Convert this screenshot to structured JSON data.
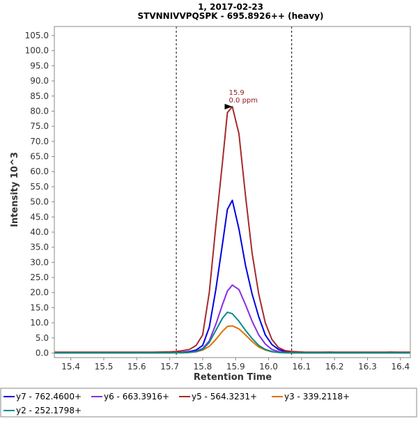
{
  "chart_data": {
    "type": "line",
    "title": "1, 2017-02-23",
    "subtitle": "STVNNIVVPQSPK - 695.8926++ (heavy)",
    "xlabel": "Retention Time",
    "ylabel": "Intensity 10^3",
    "xlim": [
      15.35,
      16.43
    ],
    "ylim": [
      -1.5,
      108
    ],
    "xticks": [
      15.4,
      15.5,
      15.6,
      15.7,
      15.8,
      15.9,
      16.0,
      16.1,
      16.2,
      16.3,
      16.4
    ],
    "xtick_labels": [
      "15.4",
      "15.5",
      "15.6",
      "15.7",
      "15.8",
      "15.9",
      "16.0",
      "16.1",
      "16.2",
      "16.3",
      "16.4"
    ],
    "yticks": [
      0,
      5,
      10,
      15,
      20,
      25,
      30,
      35,
      40,
      45,
      50,
      55,
      60,
      65,
      70,
      75,
      80,
      85,
      90,
      95,
      100,
      105
    ],
    "ytick_labels": [
      "0.0",
      "5.0",
      "10.0",
      "15.0",
      "20.0",
      "25.0",
      "30.0",
      "35.0",
      "40.0",
      "45.0",
      "50.0",
      "55.0",
      "60.0",
      "65.0",
      "70.0",
      "75.0",
      "80.0",
      "85.0",
      "90.0",
      "95.0",
      "100.0",
      "105.0"
    ],
    "grid": false,
    "vlines": [
      15.72,
      16.07
    ],
    "annotation": {
      "x": 15.89,
      "y": 81.5,
      "lines": [
        "15.9",
        "0.0 ppm"
      ],
      "color": "#8b1a1a"
    },
    "legend_position": "bottom",
    "x": [
      15.35,
      15.4,
      15.45,
      15.5,
      15.55,
      15.6,
      15.65,
      15.7,
      15.72,
      15.74,
      15.76,
      15.78,
      15.8,
      15.82,
      15.84,
      15.86,
      15.875,
      15.89,
      15.91,
      15.93,
      15.95,
      15.97,
      15.99,
      16.01,
      16.03,
      16.05,
      16.07,
      16.09,
      16.11,
      16.15,
      16.19,
      16.2,
      16.25,
      16.3,
      16.35,
      16.37,
      16.4,
      16.43
    ],
    "series": [
      {
        "name": "y7 - 762.4600+",
        "color": "#0000e0",
        "values": [
          0.2,
          0.2,
          0.2,
          0.2,
          0.2,
          0.2,
          0.2,
          0.2,
          0.25,
          0.3,
          0.5,
          1.0,
          2.5,
          8.5,
          21.0,
          36.0,
          47.5,
          50.5,
          41.0,
          29.0,
          19.5,
          12.0,
          6.0,
          2.8,
          1.2,
          0.5,
          0.3,
          0.2,
          0.2,
          0.2,
          0.3,
          0.2,
          0.2,
          0.2,
          0.2,
          0.3,
          0.2,
          0.2
        ]
      },
      {
        "name": "y6 - 663.3916+",
        "color": "#8a2be2",
        "values": [
          0.1,
          0.1,
          0.1,
          0.1,
          0.1,
          0.1,
          0.1,
          0.1,
          0.15,
          0.2,
          0.3,
          0.6,
          1.5,
          4.0,
          9.5,
          16.0,
          20.5,
          22.5,
          21.0,
          16.0,
          10.5,
          6.0,
          3.0,
          1.2,
          0.5,
          0.2,
          0.1,
          0.1,
          0.1,
          0.1,
          0.1,
          0.1,
          0.1,
          0.1,
          0.1,
          0.1,
          0.1,
          0.1
        ]
      },
      {
        "name": "y5 - 564.3231+",
        "color": "#a52a2a",
        "values": [
          0.3,
          0.3,
          0.3,
          0.3,
          0.3,
          0.3,
          0.3,
          0.4,
          0.5,
          0.8,
          1.2,
          2.5,
          6.0,
          20.0,
          42.0,
          63.0,
          79.5,
          81.5,
          72.5,
          52.0,
          33.0,
          19.5,
          10.0,
          4.5,
          1.8,
          0.8,
          0.5,
          0.4,
          0.3,
          0.3,
          0.3,
          0.3,
          0.3,
          0.3,
          0.3,
          0.3,
          0.3,
          0.3
        ]
      },
      {
        "name": "y3 - 339.2118+",
        "color": "#e07000",
        "values": [
          0.05,
          0.05,
          0.05,
          0.05,
          0.05,
          0.05,
          0.05,
          0.05,
          0.1,
          0.1,
          0.2,
          0.4,
          1.0,
          2.2,
          4.5,
          7.2,
          8.8,
          9.0,
          8.0,
          6.0,
          3.8,
          2.0,
          1.0,
          0.4,
          0.2,
          0.1,
          0.05,
          0.05,
          0.05,
          0.05,
          0.05,
          0.05,
          0.05,
          0.05,
          0.05,
          0.05,
          0.05,
          0.05
        ]
      },
      {
        "name": "y2 - 252.1798+",
        "color": "#008b8b",
        "values": [
          0.05,
          0.05,
          0.05,
          0.05,
          0.05,
          0.05,
          0.05,
          0.05,
          0.1,
          0.1,
          0.2,
          0.5,
          1.2,
          3.5,
          7.5,
          11.5,
          13.5,
          13.0,
          10.5,
          7.5,
          4.8,
          2.5,
          1.2,
          0.5,
          0.2,
          0.1,
          0.05,
          0.05,
          0.05,
          0.05,
          0.05,
          0.05,
          0.05,
          0.05,
          0.05,
          0.05,
          0.05,
          0.05
        ]
      }
    ]
  }
}
